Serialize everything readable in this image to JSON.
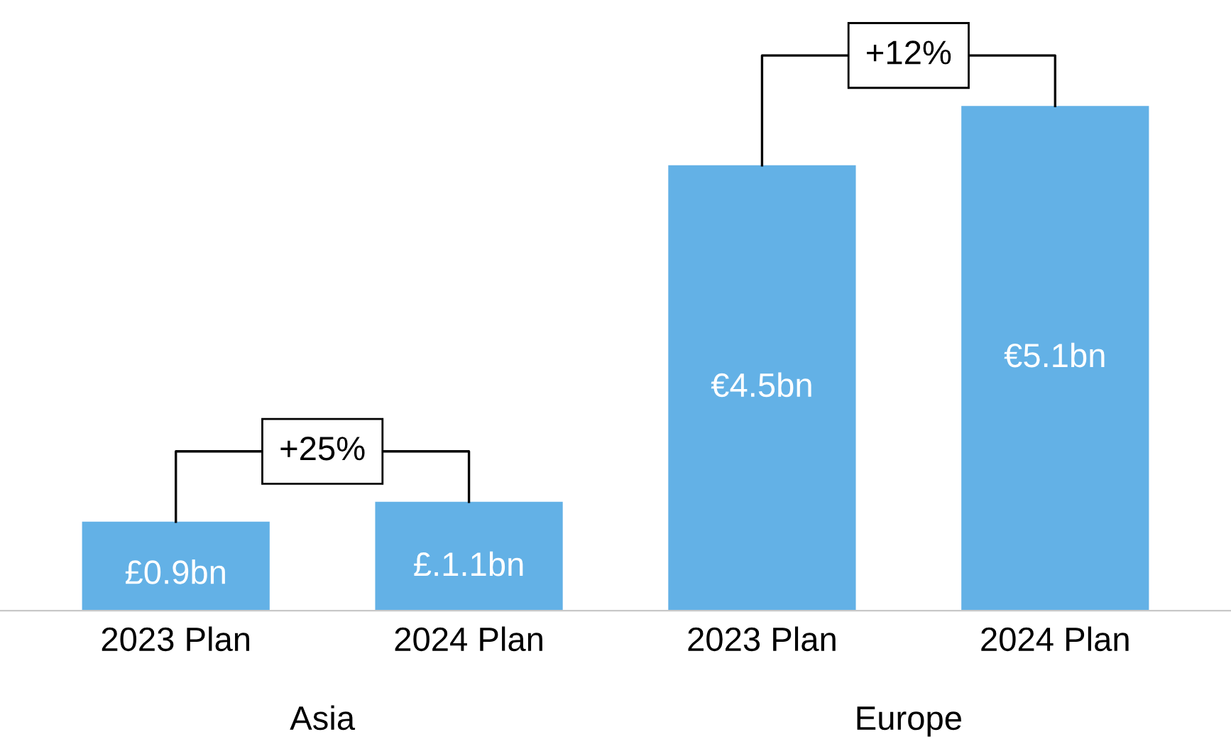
{
  "chart_data": {
    "type": "bar",
    "categories": [
      "2023 Plan",
      "2024 Plan",
      "2023 Plan",
      "2024 Plan"
    ],
    "values": [
      0.9,
      1.1,
      4.5,
      5.1
    ],
    "value_labels": [
      "£0.9bn",
      "£.1.1bn",
      "€4.5bn",
      "€5.1bn"
    ],
    "color": "#63b1e6",
    "annotations": [
      "Asia",
      "Europe",
      "+25%",
      "+12%"
    ],
    "grid": false,
    "legend": false
  }
}
